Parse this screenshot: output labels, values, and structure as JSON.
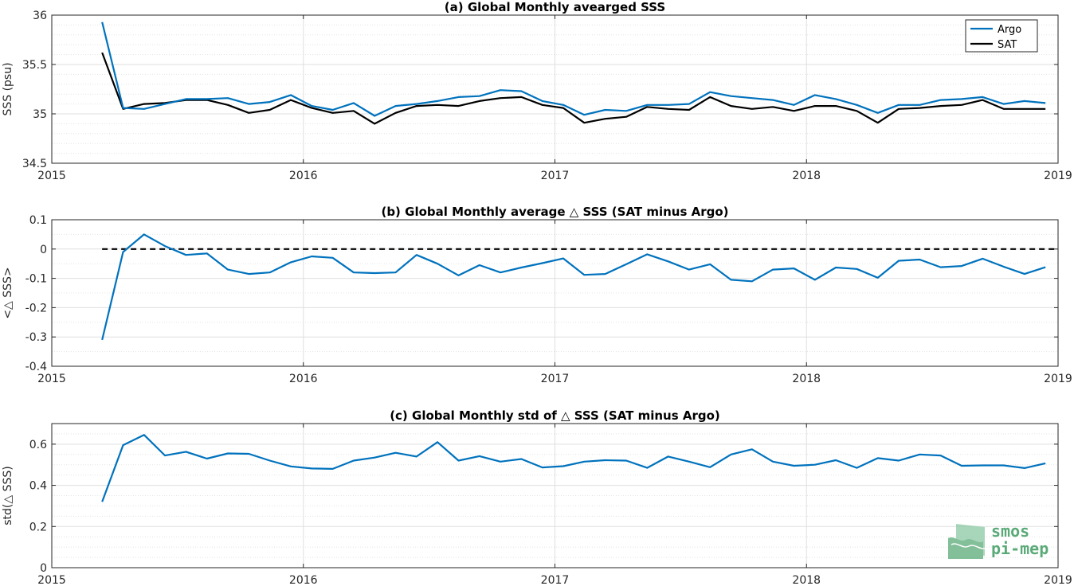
{
  "chart_data": [
    {
      "type": "line",
      "title": "(a) Global Monthly avearged SSS",
      "ylabel": "SSS (psu)",
      "xlim": [
        2015,
        2019
      ],
      "ylim": [
        34.5,
        36
      ],
      "xticks": [
        "2015",
        "2016",
        "2017",
        "2018",
        "2019"
      ],
      "yticks": [
        "34.5",
        "35",
        "35.5",
        "36"
      ],
      "ytick_values": [
        34.5,
        35,
        35.5,
        36
      ],
      "grid": true,
      "legend": "top-right",
      "series": [
        {
          "name": "Argo",
          "color": "#0072BD",
          "values": [
            35.93,
            35.06,
            35.05,
            35.1,
            35.15,
            35.15,
            35.16,
            35.1,
            35.12,
            35.19,
            35.08,
            35.04,
            35.11,
            34.98,
            35.08,
            35.1,
            35.13,
            35.17,
            35.18,
            35.24,
            35.23,
            35.13,
            35.09,
            34.99,
            35.04,
            35.03,
            35.09,
            35.09,
            35.1,
            35.22,
            35.18,
            35.16,
            35.14,
            35.09,
            35.19,
            35.15,
            35.09,
            35.01,
            35.09,
            35.09,
            35.14,
            35.15,
            35.17,
            35.1,
            35.13,
            35.11
          ]
        },
        {
          "name": "SAT",
          "color": "#000000",
          "values": [
            35.62,
            35.05,
            35.1,
            35.11,
            35.14,
            35.14,
            35.09,
            35.01,
            35.04,
            35.14,
            35.06,
            35.01,
            35.03,
            34.9,
            35.01,
            35.08,
            35.09,
            35.08,
            35.13,
            35.16,
            35.17,
            35.09,
            35.06,
            34.91,
            34.95,
            34.97,
            35.07,
            35.05,
            35.04,
            35.17,
            35.08,
            35.05,
            35.07,
            35.03,
            35.08,
            35.08,
            35.03,
            34.91,
            35.05,
            35.06,
            35.08,
            35.09,
            35.14,
            35.05,
            35.05,
            35.05
          ]
        }
      ]
    },
    {
      "type": "line",
      "title": "(b) Global Monthly average △ SSS (SAT minus Argo)",
      "ylabel": "<△ SSS>",
      "xlim": [
        2015,
        2019
      ],
      "ylim": [
        -0.4,
        0.1
      ],
      "xticks": [
        "2015",
        "2016",
        "2017",
        "2018",
        "2019"
      ],
      "yticks": [
        "-0.4",
        "-0.3",
        "-0.2",
        "-0.1",
        "0",
        "0.1"
      ],
      "ytick_values": [
        -0.4,
        -0.3,
        -0.2,
        -0.1,
        0,
        0.1
      ],
      "grid": true,
      "reference_line": 0,
      "series": [
        {
          "color": "#0072BD",
          "values": [
            -0.31,
            -0.01,
            0.05,
            0.01,
            -0.02,
            -0.015,
            -0.07,
            -0.085,
            -0.08,
            -0.045,
            -0.025,
            -0.03,
            -0.08,
            -0.082,
            -0.08,
            -0.02,
            -0.05,
            -0.09,
            -0.055,
            -0.08,
            -0.063,
            -0.048,
            -0.032,
            -0.088,
            -0.085,
            -0.052,
            -0.018,
            -0.042,
            -0.07,
            -0.052,
            -0.105,
            -0.11,
            -0.07,
            -0.066,
            -0.105,
            -0.063,
            -0.068,
            -0.098,
            -0.04,
            -0.036,
            -0.062,
            -0.058,
            -0.033,
            -0.06,
            -0.085,
            -0.062
          ]
        }
      ]
    },
    {
      "type": "line",
      "title": "(c) Global Monthly std of △ SSS (SAT minus Argo)",
      "ylabel": "std(△ SSS)",
      "xlim": [
        2015,
        2019
      ],
      "ylim": [
        0,
        0.7
      ],
      "xticks": [
        "2015",
        "2016",
        "2017",
        "2018",
        "2019"
      ],
      "yticks": [
        "0",
        "0.2",
        "0.4",
        "0.6"
      ],
      "ytick_values": [
        0,
        0.2,
        0.4,
        0.6
      ],
      "grid": true,
      "series": [
        {
          "color": "#0072BD",
          "values": [
            0.32,
            0.595,
            0.645,
            0.545,
            0.563,
            0.53,
            0.555,
            0.553,
            0.52,
            0.492,
            0.482,
            0.48,
            0.52,
            0.535,
            0.558,
            0.54,
            0.61,
            0.52,
            0.542,
            0.515,
            0.528,
            0.487,
            0.493,
            0.515,
            0.522,
            0.52,
            0.485,
            0.54,
            0.515,
            0.488,
            0.55,
            0.575,
            0.515,
            0.495,
            0.5,
            0.522,
            0.485,
            0.532,
            0.52,
            0.55,
            0.545,
            0.495,
            0.497,
            0.497,
            0.484,
            0.507
          ]
        }
      ]
    }
  ],
  "x_start": 2015.2,
  "x_step_years": 0.0833333,
  "logo": {
    "line1": "smos",
    "line2": "pi-mep",
    "color": "#5aaa78"
  }
}
